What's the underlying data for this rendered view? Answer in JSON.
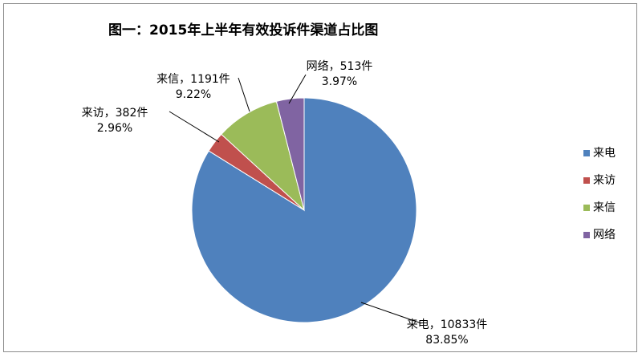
{
  "chart_data": {
    "type": "pie",
    "title": "图一：2015年上半年有效投诉件渠道占比图",
    "slices": [
      {
        "name": "来电",
        "count_label": "10833件",
        "value": 10833,
        "percent": 83.85,
        "percent_label": "83.85%",
        "color": "#4f81bd"
      },
      {
        "name": "来访",
        "count_label": "382件",
        "value": 382,
        "percent": 2.96,
        "percent_label": "2.96%",
        "color": "#c0504d"
      },
      {
        "name": "来信",
        "count_label": "1191件",
        "value": 1191,
        "percent": 9.22,
        "percent_label": "9.22%",
        "color": "#9bbb59"
      },
      {
        "name": "网络",
        "count_label": "513件",
        "value": 513,
        "percent": 3.97,
        "percent_label": "3.97%",
        "color": "#8064a2"
      }
    ],
    "legend": [
      "来电",
      "来访",
      "来信",
      "网络"
    ],
    "legend_position": "right"
  }
}
